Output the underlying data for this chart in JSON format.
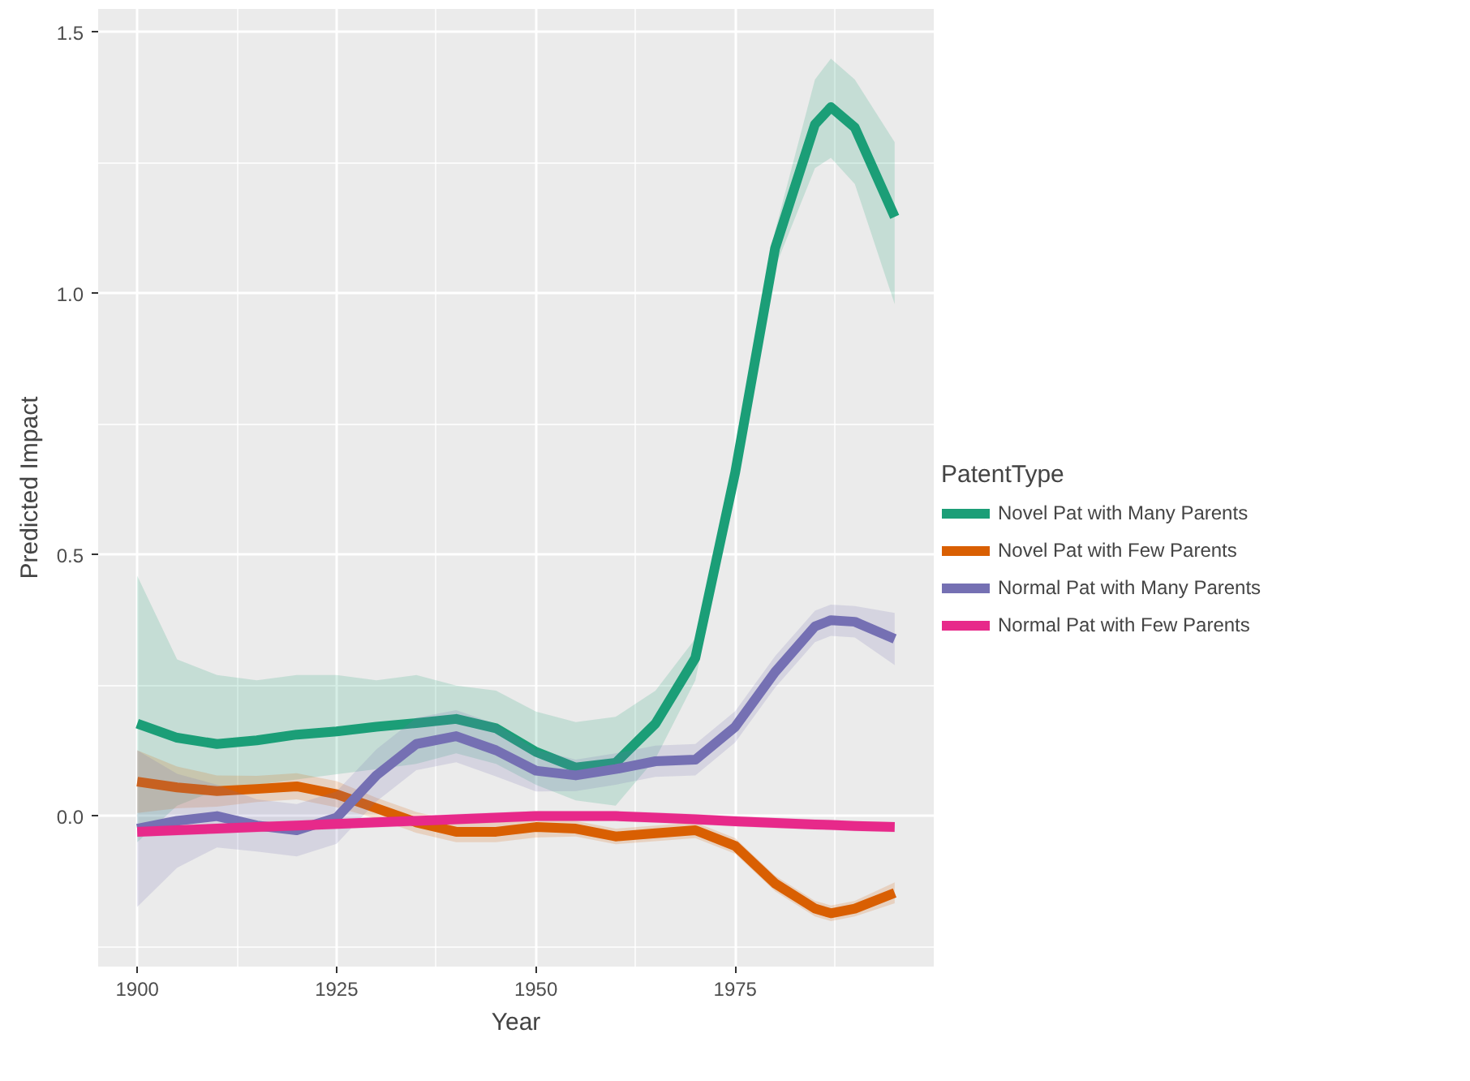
{
  "chart_data": {
    "type": "line",
    "xlabel": "Year",
    "ylabel": "Predicted Impact",
    "legend_title": "PatentType",
    "legend": "right",
    "grid": true,
    "line_style": "solid",
    "x": [
      1900,
      1905,
      1910,
      1915,
      1920,
      1925,
      1930,
      1935,
      1940,
      1945,
      1950,
      1955,
      1960,
      1965,
      1970,
      1975,
      1980,
      1985,
      1987,
      1990,
      1995
    ],
    "xlim": [
      1895.1,
      1999.9
    ],
    "ylim": [
      -0.288,
      1.545
    ],
    "xticks": [
      1900,
      1925,
      1950,
      1975
    ],
    "yticks": [
      {
        "value": 0,
        "label": "0.0"
      },
      {
        "value": 0.5,
        "label": "0.5"
      },
      {
        "value": 1,
        "label": "1.0"
      },
      {
        "value": 1.5,
        "label": "1.5"
      }
    ],
    "series": [
      {
        "name": "Novel Pat with Many Parents",
        "color": "#1b9e77",
        "values": [
          0.177,
          0.15,
          0.138,
          0.145,
          0.156,
          0.162,
          0.171,
          0.178,
          0.186,
          0.168,
          0.123,
          0.093,
          0.102,
          0.177,
          0.303,
          0.658,
          1.087,
          1.324,
          1.357,
          1.318,
          1.147
        ],
        "lower": [
          -0.05,
          0.02,
          0.05,
          0.06,
          0.07,
          0.08,
          0.09,
          0.1,
          0.12,
          0.1,
          0.06,
          0.03,
          0.02,
          0.11,
          0.26,
          0.63,
          1.05,
          1.24,
          1.26,
          1.21,
          0.98
        ],
        "upper": [
          0.46,
          0.3,
          0.27,
          0.26,
          0.27,
          0.27,
          0.26,
          0.27,
          0.25,
          0.24,
          0.2,
          0.18,
          0.19,
          0.24,
          0.34,
          0.68,
          1.12,
          1.41,
          1.45,
          1.41,
          1.29
        ]
      },
      {
        "name": "Novel Pat with Few Parents",
        "color": "#d95f02",
        "values": [
          0.066,
          0.055,
          0.048,
          0.052,
          0.057,
          0.042,
          0.015,
          -0.012,
          -0.03,
          -0.03,
          -0.021,
          -0.024,
          -0.039,
          -0.033,
          -0.027,
          -0.057,
          -0.129,
          -0.177,
          -0.186,
          -0.177,
          -0.147
        ],
        "lower": [
          0.006,
          0.015,
          0.018,
          0.027,
          0.032,
          0.017,
          -0.005,
          -0.032,
          -0.05,
          -0.05,
          -0.041,
          -0.039,
          -0.054,
          -0.048,
          -0.042,
          -0.072,
          -0.144,
          -0.192,
          -0.201,
          -0.192,
          -0.167
        ],
        "upper": [
          0.126,
          0.095,
          0.078,
          0.077,
          0.082,
          0.067,
          0.035,
          0.008,
          -0.01,
          -0.01,
          -0.001,
          -0.009,
          -0.024,
          -0.018,
          -0.012,
          -0.042,
          -0.114,
          -0.162,
          -0.171,
          -0.162,
          -0.127
        ]
      },
      {
        "name": "Normal Pat with Many Parents",
        "color": "#7570b3",
        "values": [
          -0.024,
          -0.009,
          0.0,
          -0.018,
          -0.027,
          -0.003,
          0.078,
          0.138,
          0.153,
          0.126,
          0.087,
          0.078,
          0.09,
          0.105,
          0.108,
          0.171,
          0.276,
          0.363,
          0.375,
          0.372,
          0.339
        ],
        "lower": [
          -0.174,
          -0.099,
          -0.06,
          -0.068,
          -0.077,
          -0.053,
          0.028,
          0.088,
          0.103,
          0.076,
          0.047,
          0.048,
          0.06,
          0.075,
          0.078,
          0.141,
          0.246,
          0.333,
          0.345,
          0.342,
          0.289
        ],
        "upper": [
          0.126,
          0.081,
          0.06,
          0.032,
          0.023,
          0.047,
          0.128,
          0.188,
          0.203,
          0.176,
          0.127,
          0.108,
          0.12,
          0.135,
          0.138,
          0.201,
          0.306,
          0.393,
          0.405,
          0.402,
          0.389
        ]
      },
      {
        "name": "Normal Pat with Few Parents",
        "color": "#e7298a",
        "values": [
          -0.03,
          -0.027,
          -0.024,
          -0.021,
          -0.018,
          -0.015,
          -0.012,
          -0.009,
          -0.006,
          -0.003,
          0.0,
          0.0,
          0.0,
          -0.003,
          -0.006,
          -0.01,
          -0.013,
          -0.016,
          -0.017,
          -0.019,
          -0.021
        ],
        "lower": [
          -0.04,
          -0.037,
          -0.034,
          -0.031,
          -0.028,
          -0.025,
          -0.022,
          -0.019,
          -0.016,
          -0.013,
          -0.01,
          -0.01,
          -0.01,
          -0.013,
          -0.016,
          -0.02,
          -0.023,
          -0.026,
          -0.027,
          -0.029,
          -0.031
        ],
        "upper": [
          -0.02,
          -0.017,
          -0.014,
          -0.011,
          -0.008,
          -0.005,
          -0.002,
          0.001,
          0.004,
          0.007,
          0.01,
          0.01,
          0.01,
          0.007,
          0.004,
          0.0,
          -0.003,
          -0.006,
          -0.007,
          -0.009,
          -0.011
        ]
      }
    ]
  }
}
